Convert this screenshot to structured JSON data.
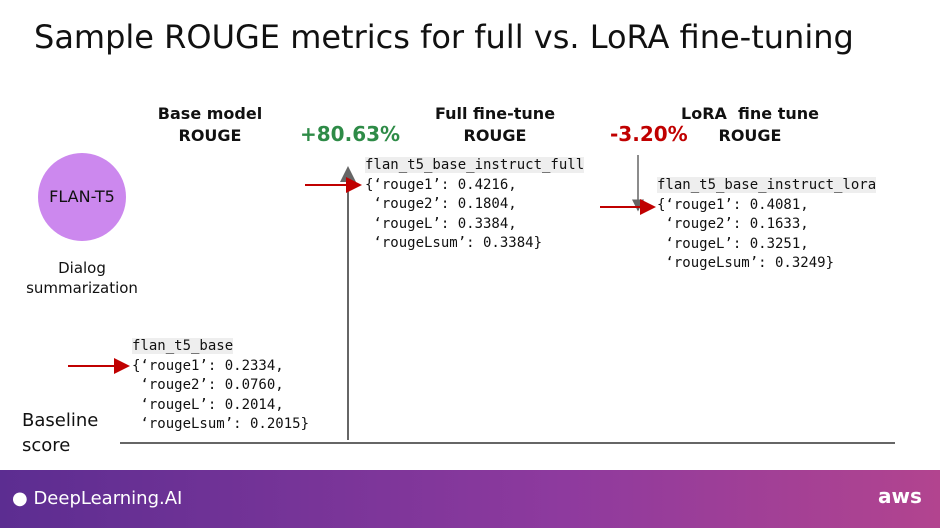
{
  "title": "Sample ROUGE metrics for full vs. LoRA fine-tuning",
  "headings": [
    {
      "lines": [
        "Base model",
        "ROUGE"
      ]
    },
    {
      "lines": [
        "Full fine-tune",
        "ROUGE"
      ]
    },
    {
      "lines": [
        "LoRA  fine tune",
        "ROUGE"
      ]
    }
  ],
  "changes": [
    "+80.63%",
    "-3.20%"
  ],
  "model": {
    "label": "FLAN-T5",
    "caption": [
      "Dialog",
      "summarization"
    ]
  },
  "baseline": [
    "Baseline",
    "score"
  ],
  "blocks": [
    {
      "name": "flan_t5_base",
      "lines": [
        "{‘rouge1’: 0.2334,",
        " ‘rouge2’: 0.0760,",
        " ‘rougeL’: 0.2014,",
        " ‘rougeLsum’: 0.2015}"
      ]
    },
    {
      "name": "flan_t5_base_instruct_full",
      "lines": [
        "{‘rouge1’: 0.4216,",
        " ‘rouge2’: 0.1804,",
        " ‘rougeL’: 0.3384,",
        " ‘rougeLsum’: 0.3384}"
      ]
    },
    {
      "name": "flan_t5_base_instruct_lora",
      "lines": [
        "{‘rouge1’: 0.4081,",
        " ‘rouge2’: 0.1633,",
        " ‘rougeL’: 0.3251,",
        " ‘rougeLsum’: 0.3249}"
      ]
    }
  ],
  "footer": {
    "brand": "DeepLearning.AI",
    "partner": "aws"
  }
}
